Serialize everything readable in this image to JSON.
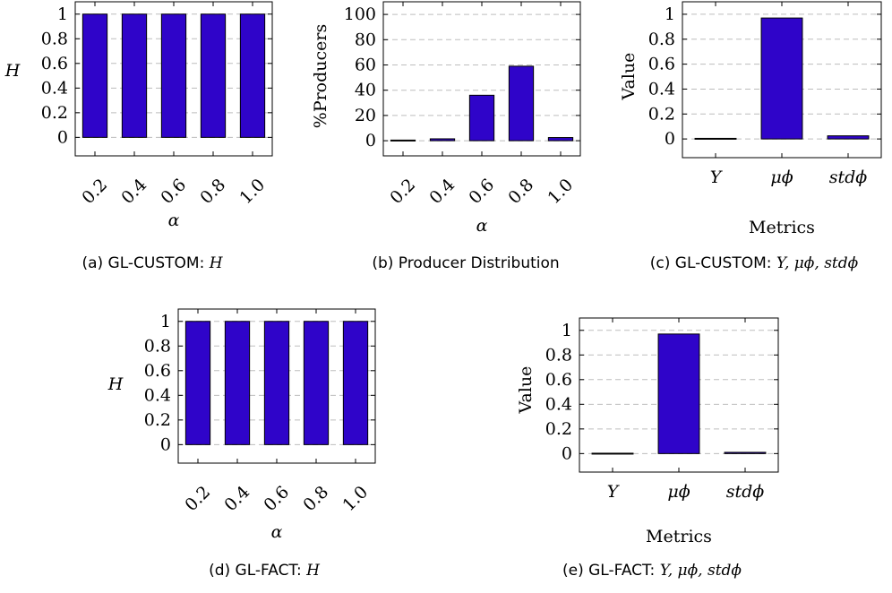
{
  "colors": {
    "bar_fill": "#2f04c9",
    "bar_stroke": "#000000",
    "grid": "#bdbdbd"
  },
  "chart_data": [
    {
      "id": "a",
      "type": "bar",
      "categories": [
        "0.2",
        "0.4",
        "0.6",
        "0.8",
        "1.0"
      ],
      "values": [
        1,
        1,
        1,
        1,
        1
      ],
      "xlabel": "α",
      "ylabel": "H",
      "ylim": [
        -0.15,
        1.1
      ],
      "yticks": [
        "0",
        "0.2",
        "0.4",
        "0.6",
        "0.8",
        "1"
      ],
      "grid": true,
      "caption_prefix": "(a) GL-CUSTOM: ",
      "caption_math": "H",
      "caption_suffix": ""
    },
    {
      "id": "b",
      "type": "bar",
      "categories": [
        "0.2",
        "0.4",
        "0.6",
        "0.8",
        "1.0"
      ],
      "values": [
        0.5,
        1.5,
        36,
        59,
        2.5
      ],
      "xlabel": "α",
      "ylabel": "%Producers",
      "ylim": [
        -12,
        110
      ],
      "yticks": [
        "0",
        "20",
        "40",
        "60",
        "80",
        "100"
      ],
      "grid": true,
      "caption_prefix": "(b) Producer Distribution",
      "caption_math": "",
      "caption_suffix": ""
    },
    {
      "id": "c",
      "type": "bar",
      "categories": [
        "Y",
        "μϕ",
        "stdϕ"
      ],
      "values": [
        0.005,
        0.97,
        0.025
      ],
      "xlabel": "Metrics",
      "ylabel": "Value",
      "ylim": [
        -0.15,
        1.1
      ],
      "yticks": [
        "0",
        "0.2",
        "0.4",
        "0.6",
        "0.8",
        "1"
      ],
      "grid": true,
      "caption_prefix": "(c) GL-CUSTOM: ",
      "caption_math": "Y, μϕ, stdϕ",
      "caption_suffix": ""
    },
    {
      "id": "d",
      "type": "bar",
      "categories": [
        "0.2",
        "0.4",
        "0.6",
        "0.8",
        "1.0"
      ],
      "values": [
        1,
        1,
        1,
        1,
        1
      ],
      "xlabel": "α",
      "ylabel": "H",
      "ylim": [
        -0.15,
        1.1
      ],
      "yticks": [
        "0",
        "0.2",
        "0.4",
        "0.6",
        "0.8",
        "1"
      ],
      "grid": true,
      "caption_prefix": "(d) GL-FACT: ",
      "caption_math": "H",
      "caption_suffix": ""
    },
    {
      "id": "e",
      "type": "bar",
      "categories": [
        "Y",
        "μϕ",
        "stdϕ"
      ],
      "values": [
        0.003,
        0.97,
        0.01
      ],
      "xlabel": "Metrics",
      "ylabel": "Value",
      "ylim": [
        -0.15,
        1.1
      ],
      "yticks": [
        "0",
        "0.2",
        "0.4",
        "0.6",
        "0.8",
        "1"
      ],
      "grid": true,
      "caption_prefix": "(e) GL-FACT: ",
      "caption_math": "Y, μϕ, stdϕ",
      "caption_suffix": ""
    }
  ]
}
